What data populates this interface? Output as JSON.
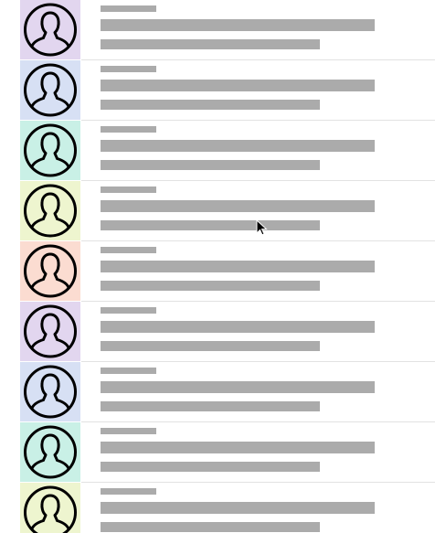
{
  "list": {
    "items": [
      {
        "avatar_color": "#e2d6ef",
        "avatar_icon": "person-silhouette-icon"
      },
      {
        "avatar_color": "#d7e0f4",
        "avatar_icon": "person-silhouette-icon"
      },
      {
        "avatar_color": "#c9f0e6",
        "avatar_icon": "person-silhouette-icon"
      },
      {
        "avatar_color": "#eef5cf",
        "avatar_icon": "person-silhouette-icon"
      },
      {
        "avatar_color": "#fbdcd1",
        "avatar_icon": "person-silhouette-icon"
      },
      {
        "avatar_color": "#e2d6ef",
        "avatar_icon": "person-silhouette-icon"
      },
      {
        "avatar_color": "#d7e0f4",
        "avatar_icon": "person-silhouette-icon"
      },
      {
        "avatar_color": "#c9f0e6",
        "avatar_icon": "person-silhouette-icon"
      },
      {
        "avatar_color": "#eef5cf",
        "avatar_icon": "person-silhouette-icon"
      }
    ],
    "placeholder_color": "#ababab",
    "divider_color": "#e2e2e2"
  },
  "cursor": {
    "icon": "mouse-pointer-icon"
  }
}
